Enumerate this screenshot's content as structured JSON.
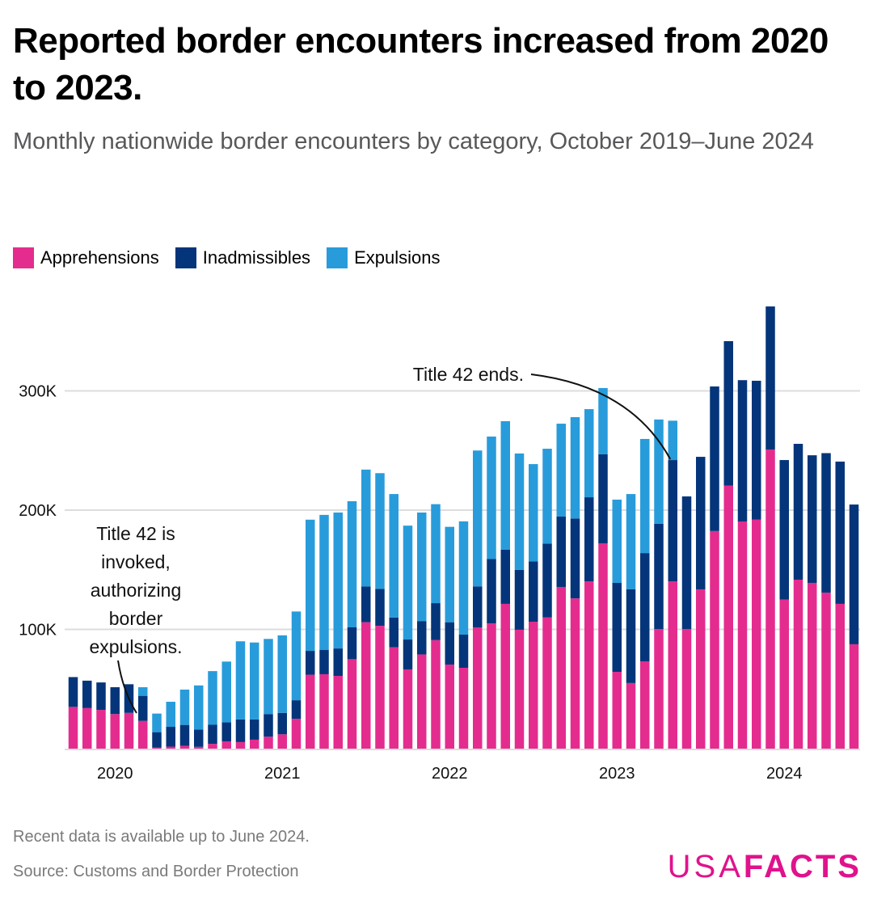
{
  "header": {
    "title": "Reported border encounters increased from 2020 to 2023.",
    "subtitle": "Monthly nationwide border encounters by category, October 2019–June 2024"
  },
  "legend": [
    {
      "label": "Apprehensions",
      "color": "#e42c8f"
    },
    {
      "label": "Inadmissibles",
      "color": "#04357a"
    },
    {
      "label": "Expulsions",
      "color": "#289cdb"
    }
  ],
  "footer": {
    "note": "Recent data is available up to June 2024.",
    "source": "Source: Customs and Border Protection",
    "logo_light": "USA",
    "logo_bold": "FACTS"
  },
  "chart_data": {
    "type": "bar",
    "stacked": true,
    "title": "Reported border encounters increased from 2020 to 2023.",
    "subtitle": "Monthly nationwide border encounters by category, October 2019–June 2024",
    "xlabel": "",
    "ylabel": "",
    "ylim": [
      0,
      380000
    ],
    "yticks": [
      100000,
      200000,
      300000
    ],
    "ytick_labels": [
      "100K",
      "200K",
      "300K"
    ],
    "grid": true,
    "legend_position": "top-left",
    "x_tick_labels": [
      {
        "label": "2020",
        "category": "Jan 2020"
      },
      {
        "label": "2021",
        "category": "Jan 2021"
      },
      {
        "label": "2022",
        "category": "Jan 2022"
      },
      {
        "label": "2023",
        "category": "Jan 2023"
      },
      {
        "label": "2024",
        "category": "Jan 2024"
      }
    ],
    "categories": [
      "Oct 2019",
      "Nov 2019",
      "Dec 2019",
      "Jan 2020",
      "Feb 2020",
      "Mar 2020",
      "Apr 2020",
      "May 2020",
      "Jun 2020",
      "Jul 2020",
      "Aug 2020",
      "Sep 2020",
      "Oct 2020",
      "Nov 2020",
      "Dec 2020",
      "Jan 2021",
      "Feb 2021",
      "Mar 2021",
      "Apr 2021",
      "May 2021",
      "Jun 2021",
      "Jul 2021",
      "Aug 2021",
      "Sep 2021",
      "Oct 2021",
      "Nov 2021",
      "Dec 2021",
      "Jan 2022",
      "Feb 2022",
      "Mar 2022",
      "Apr 2022",
      "May 2022",
      "Jun 2022",
      "Jul 2022",
      "Aug 2022",
      "Sep 2022",
      "Oct 2022",
      "Nov 2022",
      "Dec 2022",
      "Jan 2023",
      "Feb 2023",
      "Mar 2023",
      "Apr 2023",
      "May 2023",
      "Jun 2023",
      "Jul 2023",
      "Aug 2023",
      "Sep 2023",
      "Oct 2023",
      "Nov 2023",
      "Dec 2023",
      "Jan 2024",
      "Feb 2024",
      "Mar 2024",
      "Apr 2024",
      "May 2024",
      "Jun 2024"
    ],
    "series": [
      {
        "name": "Apprehensions",
        "color": "#e42c8f",
        "values": [
          35000,
          34000,
          32500,
          29000,
          30000,
          23300,
          1000,
          1700,
          2400,
          1500,
          4000,
          6000,
          5500,
          7500,
          10000,
          12000,
          25000,
          62000,
          62400,
          61000,
          75000,
          106000,
          103000,
          85000,
          66400,
          79000,
          91000,
          70500,
          67800,
          101700,
          105000,
          121400,
          99700,
          106400,
          110000,
          135600,
          126000,
          140300,
          172200,
          64400,
          55000,
          73200,
          100300,
          140300,
          100300,
          133500,
          182500,
          220500,
          190500,
          192000,
          250800,
          125000,
          141700,
          139000,
          130800,
          121400,
          87500
        ]
      },
      {
        "name": "Inadmissibles",
        "color": "#04357a",
        "values": [
          25000,
          23000,
          23000,
          22500,
          24000,
          21000,
          12800,
          16600,
          17500,
          14500,
          16000,
          16000,
          19000,
          17000,
          19000,
          18000,
          15600,
          20000,
          20300,
          23000,
          26700,
          30000,
          31000,
          25000,
          25100,
          28000,
          31000,
          35500,
          27800,
          34300,
          54000,
          45400,
          50300,
          50600,
          62000,
          59000,
          67000,
          70500,
          74600,
          74600,
          78600,
          90800,
          88200,
          101700,
          111200,
          111200,
          121200,
          121200,
          118500,
          116500,
          120000,
          117000,
          113900,
          107000,
          117000,
          119300,
          117200
        ]
      },
      {
        "name": "Expulsions",
        "color": "#289cdb",
        "values": [
          0,
          0,
          0,
          0,
          0,
          7200,
          15600,
          21000,
          29600,
          37000,
          45000,
          51000,
          65500,
          64500,
          63000,
          65000,
          74400,
          110000,
          113300,
          114000,
          105800,
          98000,
          97000,
          103500,
          95500,
          91000,
          83000,
          80000,
          95000,
          114000,
          102700,
          107800,
          97500,
          81600,
          79500,
          77900,
          85000,
          73900,
          55600,
          69800,
          79900,
          95700,
          87500,
          33000,
          0,
          0,
          0,
          0,
          0,
          0,
          0,
          0,
          0,
          0,
          0,
          0,
          0
        ]
      }
    ],
    "annotations": [
      {
        "text": "Title 42 is invoked, authorizing border expulsions.",
        "lines": [
          "Title 42 is",
          "invoked,",
          "authorizing",
          "border",
          "expulsions."
        ],
        "category": "Mar 2020"
      },
      {
        "text": "Title 42 ends.",
        "category": "May 2023"
      }
    ]
  }
}
